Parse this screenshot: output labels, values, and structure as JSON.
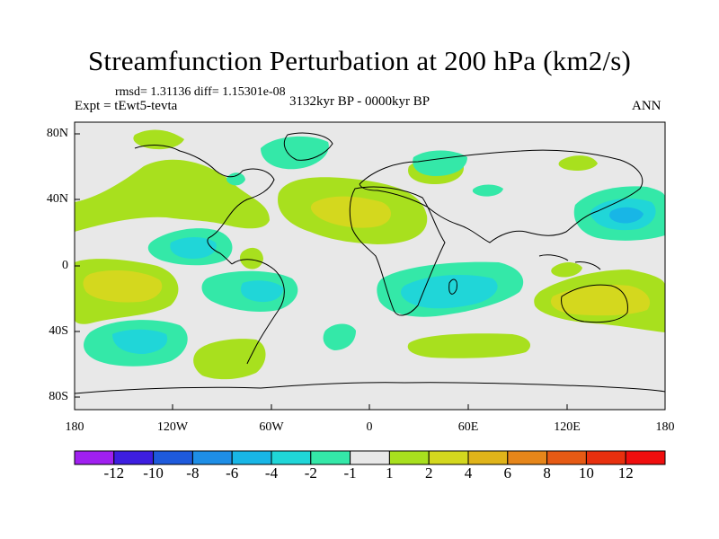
{
  "title": "Streamfunction Perturbation at 200 hPa (km2/s)",
  "stats_line": "rmsd= 1.31136 diff= 1.15301e-08",
  "expt_label": "Expt = tEwt5-tevta",
  "period_label": "3132kyr BP - 0000kyr BP",
  "season_label": "ANN",
  "lat_labels": [
    "80N",
    "40N",
    "0",
    "40S",
    "80S"
  ],
  "lon_labels": [
    "180",
    "120W",
    "60W",
    "0",
    "60E",
    "120E",
    "180"
  ],
  "colorbar": {
    "labels": [
      "-12",
      "-10",
      "-8",
      "-6",
      "-4",
      "-2",
      "-1",
      "1",
      "2",
      "4",
      "6",
      "8",
      "10",
      "12"
    ],
    "colors": [
      "#a020f0",
      "#3d1ee0",
      "#1e5adc",
      "#1e8ee6",
      "#18b6e6",
      "#20d6d8",
      "#34e8a8",
      "#e8e8e8",
      "#a8e01e",
      "#d4d81e",
      "#e0b41a",
      "#e6861a",
      "#e65a14",
      "#e8300e",
      "#f00e0e"
    ]
  },
  "palette": {
    "neutral": "#e8e8e8",
    "n1": "#34e8a8",
    "n2": "#20d6d8",
    "n4": "#18b6e6",
    "p1": "#a8e01e",
    "p2": "#d4d81e",
    "p4": "#e0b41a"
  }
}
